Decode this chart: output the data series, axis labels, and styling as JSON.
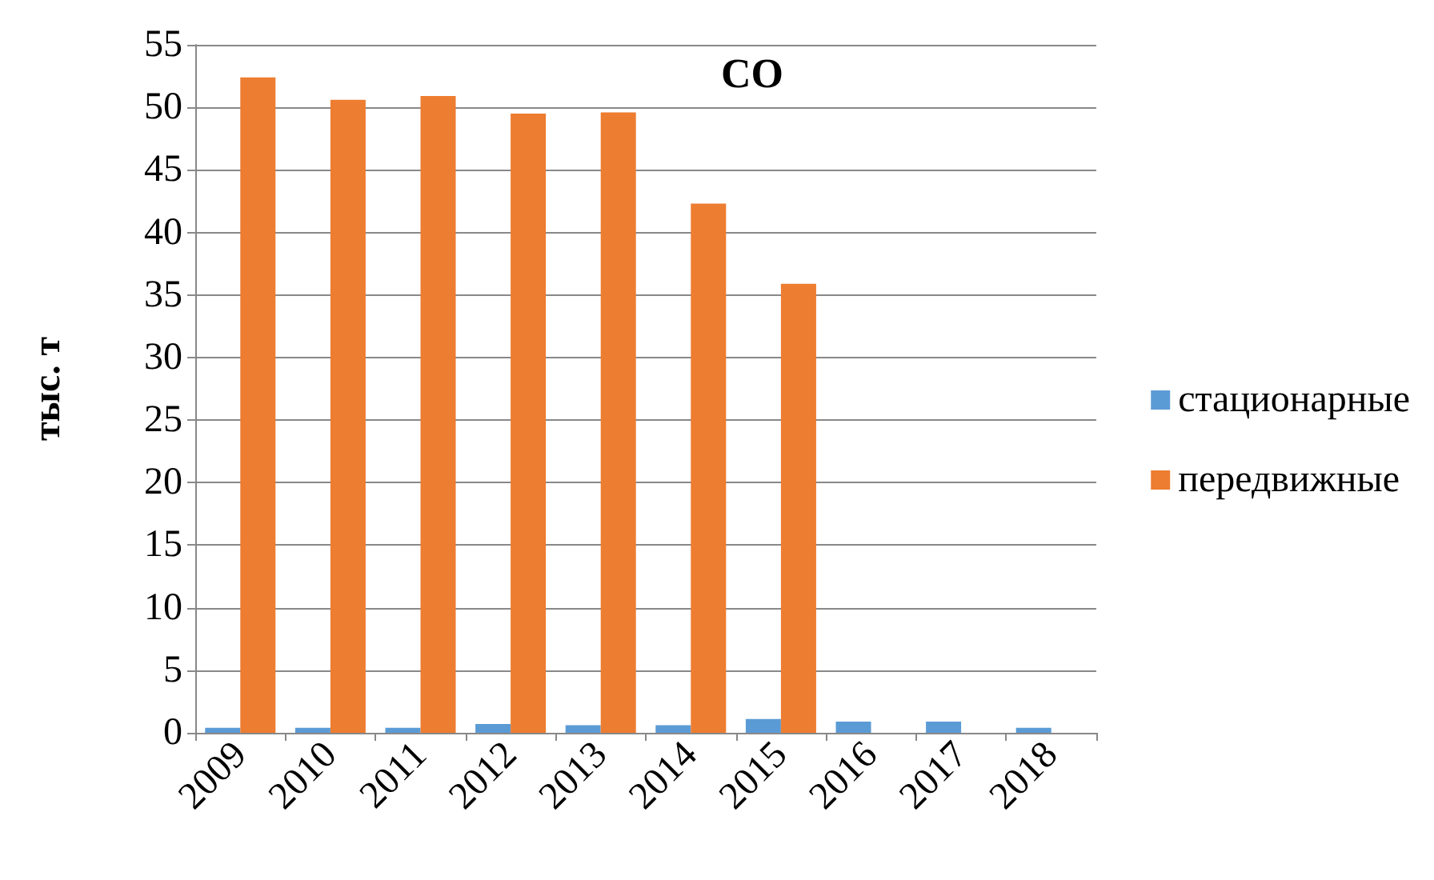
{
  "chart_data": {
    "type": "bar",
    "title": "CO",
    "ylabel": "тыс. т",
    "categories": [
      "2009",
      "2010",
      "2011",
      "2012",
      "2013",
      "2014",
      "2015",
      "2016",
      "2017",
      "2018"
    ],
    "series": [
      {
        "name": "стационарные",
        "color": "#5b9bd5",
        "values": [
          0.4,
          0.4,
          0.4,
          0.7,
          0.6,
          0.6,
          1.1,
          0.9,
          0.9,
          0.4
        ]
      },
      {
        "name": "передвижные",
        "color": "#ed7d31",
        "values": [
          52.4,
          50.6,
          50.9,
          49.5,
          49.6,
          42.3,
          35.9,
          null,
          null,
          null
        ]
      }
    ],
    "ylim": [
      0,
      55
    ],
    "yticks": [
      0,
      5,
      10,
      15,
      20,
      25,
      30,
      35,
      40,
      45,
      50,
      55
    ],
    "grid": "y",
    "legend": "right"
  }
}
